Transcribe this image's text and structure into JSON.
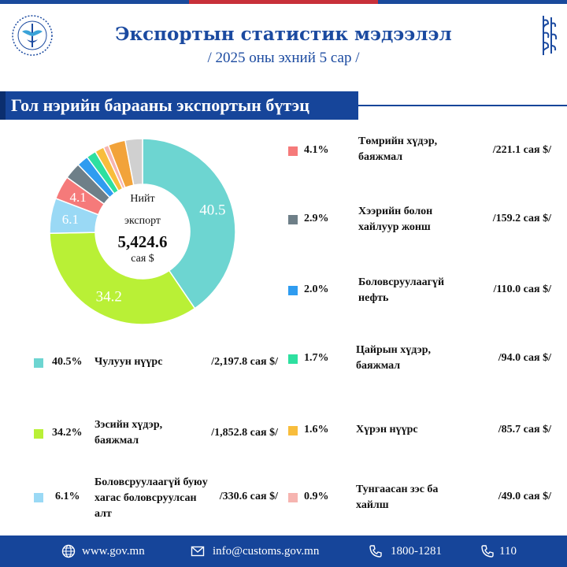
{
  "header": {
    "title": "Экспортын статистик мэдээлэл",
    "subtitle": "/ 2025 оны эхний 5 сар /"
  },
  "section_title": "Гол нэрийн барааны экспортын бүтэц",
  "center": {
    "line1": "Нийт",
    "line2": "экспорт",
    "total": "5,424.6",
    "unit": "сая $"
  },
  "chart_data": {
    "type": "pie",
    "donut": true,
    "slices": [
      {
        "label": "Чулуун нүүрс",
        "value": 40.5,
        "pct_label": "40.5%",
        "amount_label": "/2,197.8 сая $/",
        "color": "#6dd5d1",
        "data_label": "40.5"
      },
      {
        "label": "Зэсийн хүдэр, баяжмал",
        "value": 34.2,
        "pct_label": "34.2%",
        "amount_label": "/1,852.8 сая $/",
        "color": "#b9f036",
        "data_label": "34.2"
      },
      {
        "label": "Боловсруулаагүй буюу хагас боловсруулсан алт",
        "value": 6.1,
        "pct_label": "6.1%",
        "amount_label": "/330.6 сая $/",
        "color": "#9ad9f5",
        "data_label": "6.1"
      },
      {
        "label": "Төмрийн хүдэр, баяжмал",
        "value": 4.1,
        "pct_label": "4.1%",
        "amount_label": "/221.1 сая $/",
        "color": "#f57a7a",
        "data_label": "4.1"
      },
      {
        "label": "Хээрийн болон хайлуур жонш",
        "value": 2.9,
        "pct_label": "2.9%",
        "amount_label": "/159.2 сая $/",
        "color": "#6e7f88",
        "data_label": ""
      },
      {
        "label": "Боловсруулаагүй нефть",
        "value": 2.0,
        "pct_label": "2.0%",
        "amount_label": "/110.0 сая $/",
        "color": "#2f9cf0",
        "data_label": ""
      },
      {
        "label": "Цайрын хүдэр, баяжмал",
        "value": 1.7,
        "pct_label": "1.7%",
        "amount_label": "/94.0 сая $/",
        "color": "#2ee0a0",
        "data_label": ""
      },
      {
        "label": "Хүрэн нүүрс",
        "value": 1.6,
        "pct_label": "1.6%",
        "amount_label": "/85.7 сая $/",
        "color": "#f8bd3c",
        "data_label": ""
      },
      {
        "label": "Тунгаасан зэс ба хайлш",
        "value": 0.9,
        "pct_label": "0.9%",
        "amount_label": "/49.0 сая $/",
        "color": "#f6b4b0",
        "data_label": ""
      }
    ],
    "other_slices_colors": [
      "#f2a33a",
      "#d0d0d0"
    ]
  },
  "footer": {
    "web": "www.gov.mn",
    "email": "info@customs.gov.mn",
    "phone1": "1800-1281",
    "phone2": "110"
  },
  "colors": {
    "brand": "#16459a",
    "accent_red": "#c8303a"
  }
}
